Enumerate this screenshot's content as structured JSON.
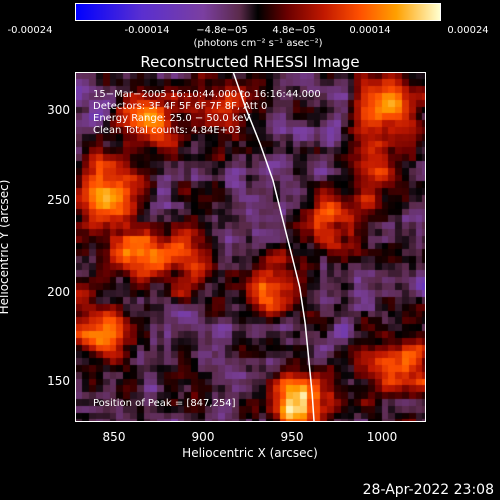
{
  "chart_data": {
    "type": "heatmap",
    "title": "Reconstructed RHESSI Image",
    "xlabel": "Heliocentric X (arcsec)",
    "ylabel": "Heliocentric Y (arcsec)",
    "xlim": [
      830,
      1025
    ],
    "ylim": [
      125,
      320
    ],
    "xticks": [
      "850",
      "900",
      "950",
      "1000"
    ],
    "xtick_values": [
      850,
      900,
      950,
      1000
    ],
    "yticks": [
      "150",
      "200",
      "250",
      "300"
    ],
    "ytick_values": [
      150,
      200,
      250,
      300
    ],
    "colorbar": {
      "ticks": [
        "-0.00024",
        "-0.00014",
        "−4.8e−05",
        "4.8e−05",
        "0.00014",
        "0.00024"
      ],
      "units": "(photons cm⁻² s⁻¹ asec⁻²)",
      "range": [
        -0.00024,
        0.00024
      ]
    },
    "info_lines": [
      "15−Mar−2005 16:10:44.000 to 16:16:44.000",
      "Detectors: 3F 4F 5F 6F 7F 8F, Att 0",
      "Energy Range: 25.0 − 50.0 keV",
      "Clean      Total counts: 4.84E+03"
    ],
    "peak_label": "Position of Peak = [847,254]",
    "peak": [
      847,
      254
    ],
    "bright_sources": [
      {
        "x": 847,
        "y": 254,
        "value": 0.00024
      },
      {
        "x": 870,
        "y": 295,
        "value": 0.00018
      },
      {
        "x": 1005,
        "y": 300,
        "value": 0.0002
      },
      {
        "x": 845,
        "y": 175,
        "value": 0.0002
      },
      {
        "x": 955,
        "y": 135,
        "value": 0.00022
      },
      {
        "x": 1010,
        "y": 155,
        "value": 0.00019
      },
      {
        "x": 890,
        "y": 215,
        "value": 0.00016
      },
      {
        "x": 940,
        "y": 200,
        "value": 0.00014
      },
      {
        "x": 975,
        "y": 235,
        "value": 0.00015
      },
      {
        "x": 860,
        "y": 220,
        "value": 0.00015
      },
      {
        "x": 915,
        "y": 300,
        "value": 0.00012
      },
      {
        "x": 1000,
        "y": 265,
        "value": 0.00012
      }
    ],
    "limb_curve": [
      [
        918,
        320
      ],
      [
        925,
        300
      ],
      [
        933,
        280
      ],
      [
        940,
        260
      ],
      [
        945,
        240
      ],
      [
        950,
        220
      ],
      [
        955,
        200
      ],
      [
        958,
        180
      ],
      [
        960,
        160
      ],
      [
        962,
        140
      ],
      [
        963,
        125
      ]
    ]
  },
  "timestamp": "28-Apr-2022 23:08"
}
